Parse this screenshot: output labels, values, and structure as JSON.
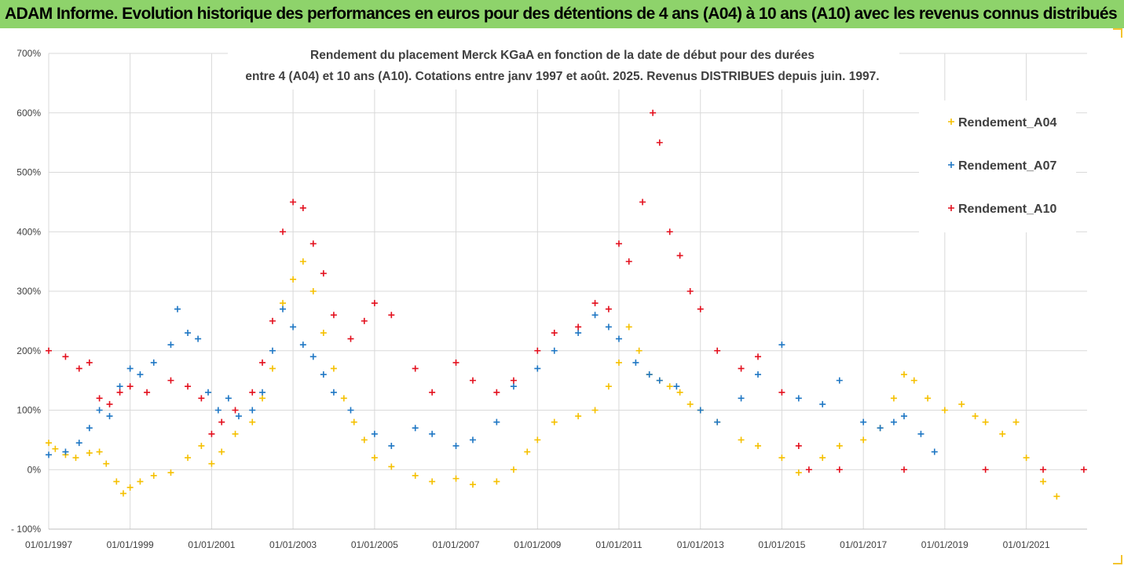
{
  "header": {
    "banner_title": "ADAM Informe. Evolution historique des performances en euros pour des détentions de 4 ans (A04) à 10 ans (A10) avec les revenus connus distribués"
  },
  "colors": {
    "banner_bg": "#8ed36b",
    "a04": "#f5c000",
    "a07": "#1f77c4",
    "a10": "#e3101e",
    "grid": "#d9d9d9",
    "axis_text": "#404040"
  },
  "chart_data": {
    "type": "scatter",
    "title_line1": "Rendement du placement Merck KGaA en fonction de la date de début pour des durées",
    "title_line2": "entre 4 (A04) et 10 ans (A10). Cotations entre janv 1997 et août. 2025. Revenus DISTRIBUES depuis juin. 1997.",
    "x_tick_labels": [
      "01/01/1997",
      "01/01/1999",
      "01/01/2001",
      "01/01/2003",
      "01/01/2005",
      "01/01/2007",
      "01/01/2009",
      "01/01/2011",
      "01/01/2013",
      "01/01/2015",
      "01/01/2017",
      "01/01/2019",
      "01/01/2021"
    ],
    "x_range": [
      "1997-01-01",
      "2022-06-30"
    ],
    "y_tick_labels": [
      "- 100%",
      "0%",
      "100%",
      "200%",
      "300%",
      "400%",
      "500%",
      "600%",
      "700%"
    ],
    "y_ticks": [
      -100,
      0,
      100,
      200,
      300,
      400,
      500,
      600,
      700
    ],
    "ylim": [
      -100,
      700
    ],
    "grid": true,
    "legend_position": "top-right",
    "marker": "+",
    "series": [
      {
        "name": "Rendement_A04",
        "color": "#f5c000",
        "points": [
          [
            "1997-01-01",
            45
          ],
          [
            "1997-03-01",
            35
          ],
          [
            "1997-06-01",
            25
          ],
          [
            "1997-09-01",
            20
          ],
          [
            "1998-01-01",
            28
          ],
          [
            "1998-04-01",
            30
          ],
          [
            "1998-06-01",
            10
          ],
          [
            "1998-09-01",
            -20
          ],
          [
            "1998-11-01",
            -40
          ],
          [
            "1999-01-01",
            -30
          ],
          [
            "1999-04-01",
            -20
          ],
          [
            "1999-08-01",
            -10
          ],
          [
            "2000-01-01",
            -5
          ],
          [
            "2000-06-01",
            20
          ],
          [
            "2000-10-01",
            40
          ],
          [
            "2001-01-01",
            10
          ],
          [
            "2001-04-01",
            30
          ],
          [
            "2001-08-01",
            60
          ],
          [
            "2002-01-01",
            80
          ],
          [
            "2002-04-01",
            120
          ],
          [
            "2002-07-01",
            170
          ],
          [
            "2002-10-01",
            280
          ],
          [
            "2003-01-01",
            320
          ],
          [
            "2003-04-01",
            350
          ],
          [
            "2003-07-01",
            300
          ],
          [
            "2003-10-01",
            230
          ],
          [
            "2004-01-01",
            170
          ],
          [
            "2004-04-01",
            120
          ],
          [
            "2004-07-01",
            80
          ],
          [
            "2004-10-01",
            50
          ],
          [
            "2005-01-01",
            20
          ],
          [
            "2005-06-01",
            5
          ],
          [
            "2006-01-01",
            -10
          ],
          [
            "2006-06-01",
            -20
          ],
          [
            "2007-01-01",
            -15
          ],
          [
            "2007-06-01",
            -25
          ],
          [
            "2008-01-01",
            -20
          ],
          [
            "2008-06-01",
            0
          ],
          [
            "2008-10-01",
            30
          ],
          [
            "2009-01-01",
            50
          ],
          [
            "2009-06-01",
            80
          ],
          [
            "2010-01-01",
            90
          ],
          [
            "2010-06-01",
            100
          ],
          [
            "2010-10-01",
            140
          ],
          [
            "2011-01-01",
            180
          ],
          [
            "2011-04-01",
            240
          ],
          [
            "2011-07-01",
            200
          ],
          [
            "2011-10-01",
            160
          ],
          [
            "2012-01-01",
            150
          ],
          [
            "2012-04-01",
            140
          ],
          [
            "2012-07-01",
            130
          ],
          [
            "2012-10-01",
            110
          ],
          [
            "2013-01-01",
            100
          ],
          [
            "2013-06-01",
            80
          ],
          [
            "2014-01-01",
            50
          ],
          [
            "2014-06-01",
            40
          ],
          [
            "2015-01-01",
            20
          ],
          [
            "2015-06-01",
            -5
          ],
          [
            "2016-01-01",
            20
          ],
          [
            "2016-06-01",
            40
          ],
          [
            "2017-01-01",
            50
          ],
          [
            "2017-06-01",
            70
          ],
          [
            "2017-10-01",
            120
          ],
          [
            "2018-01-01",
            160
          ],
          [
            "2018-04-01",
            150
          ],
          [
            "2018-08-01",
            120
          ],
          [
            "2019-01-01",
            100
          ],
          [
            "2019-06-01",
            110
          ],
          [
            "2019-10-01",
            90
          ],
          [
            "2020-01-01",
            80
          ],
          [
            "2020-06-01",
            60
          ],
          [
            "2020-10-01",
            80
          ],
          [
            "2021-01-01",
            20
          ],
          [
            "2021-06-01",
            -20
          ],
          [
            "2021-10-01",
            -45
          ]
        ]
      },
      {
        "name": "Rendement_A07",
        "color": "#1f77c4",
        "points": [
          [
            "1997-01-01",
            25
          ],
          [
            "1997-06-01",
            30
          ],
          [
            "1997-10-01",
            45
          ],
          [
            "1998-01-01",
            70
          ],
          [
            "1998-04-01",
            100
          ],
          [
            "1998-07-01",
            90
          ],
          [
            "1998-10-01",
            140
          ],
          [
            "1999-01-01",
            170
          ],
          [
            "1999-04-01",
            160
          ],
          [
            "1999-08-01",
            180
          ],
          [
            "2000-01-01",
            210
          ],
          [
            "2000-03-01",
            270
          ],
          [
            "2000-06-01",
            230
          ],
          [
            "2000-09-01",
            220
          ],
          [
            "2000-12-01",
            130
          ],
          [
            "2001-03-01",
            100
          ],
          [
            "2001-06-01",
            120
          ],
          [
            "2001-09-01",
            90
          ],
          [
            "2002-01-01",
            100
          ],
          [
            "2002-04-01",
            130
          ],
          [
            "2002-07-01",
            200
          ],
          [
            "2002-10-01",
            270
          ],
          [
            "2003-01-01",
            240
          ],
          [
            "2003-04-01",
            210
          ],
          [
            "2003-07-01",
            190
          ],
          [
            "2003-10-01",
            160
          ],
          [
            "2004-01-01",
            130
          ],
          [
            "2004-06-01",
            100
          ],
          [
            "2005-01-01",
            60
          ],
          [
            "2005-06-01",
            40
          ],
          [
            "2006-01-01",
            70
          ],
          [
            "2006-06-01",
            60
          ],
          [
            "2007-01-01",
            40
          ],
          [
            "2007-06-01",
            50
          ],
          [
            "2008-01-01",
            80
          ],
          [
            "2008-06-01",
            140
          ],
          [
            "2009-01-01",
            170
          ],
          [
            "2009-06-01",
            200
          ],
          [
            "2010-01-01",
            230
          ],
          [
            "2010-06-01",
            260
          ],
          [
            "2010-10-01",
            240
          ],
          [
            "2011-01-01",
            220
          ],
          [
            "2011-06-01",
            180
          ],
          [
            "2011-10-01",
            160
          ],
          [
            "2012-01-01",
            150
          ],
          [
            "2012-06-01",
            140
          ],
          [
            "2013-01-01",
            100
          ],
          [
            "2013-06-01",
            80
          ],
          [
            "2014-01-01",
            120
          ],
          [
            "2014-06-01",
            160
          ],
          [
            "2015-01-01",
            210
          ],
          [
            "2015-06-01",
            120
          ],
          [
            "2016-01-01",
            110
          ],
          [
            "2016-06-01",
            150
          ],
          [
            "2017-01-01",
            80
          ],
          [
            "2017-06-01",
            70
          ],
          [
            "2017-10-01",
            80
          ],
          [
            "2018-01-01",
            90
          ],
          [
            "2018-06-01",
            60
          ],
          [
            "2018-10-01",
            30
          ]
        ]
      },
      {
        "name": "Rendement_A10",
        "color": "#e3101e",
        "points": [
          [
            "1997-01-01",
            200
          ],
          [
            "1997-06-01",
            190
          ],
          [
            "1997-10-01",
            170
          ],
          [
            "1998-01-01",
            180
          ],
          [
            "1998-04-01",
            120
          ],
          [
            "1998-07-01",
            110
          ],
          [
            "1998-10-01",
            130
          ],
          [
            "1999-01-01",
            140
          ],
          [
            "1999-06-01",
            130
          ],
          [
            "2000-01-01",
            150
          ],
          [
            "2000-06-01",
            140
          ],
          [
            "2000-10-01",
            120
          ],
          [
            "2001-01-01",
            60
          ],
          [
            "2001-04-01",
            80
          ],
          [
            "2001-08-01",
            100
          ],
          [
            "2002-01-01",
            130
          ],
          [
            "2002-04-01",
            180
          ],
          [
            "2002-07-01",
            250
          ],
          [
            "2002-10-01",
            400
          ],
          [
            "2003-01-01",
            450
          ],
          [
            "2003-04-01",
            440
          ],
          [
            "2003-07-01",
            380
          ],
          [
            "2003-10-01",
            330
          ],
          [
            "2004-01-01",
            260
          ],
          [
            "2004-06-01",
            220
          ],
          [
            "2004-10-01",
            250
          ],
          [
            "2005-01-01",
            280
          ],
          [
            "2005-06-01",
            260
          ],
          [
            "2006-01-01",
            170
          ],
          [
            "2006-06-01",
            130
          ],
          [
            "2007-01-01",
            180
          ],
          [
            "2007-06-01",
            150
          ],
          [
            "2008-01-01",
            130
          ],
          [
            "2008-06-01",
            150
          ],
          [
            "2009-01-01",
            200
          ],
          [
            "2009-06-01",
            230
          ],
          [
            "2010-01-01",
            240
          ],
          [
            "2010-06-01",
            280
          ],
          [
            "2010-10-01",
            270
          ],
          [
            "2011-01-01",
            380
          ],
          [
            "2011-04-01",
            350
          ],
          [
            "2011-08-01",
            450
          ],
          [
            "2011-11-01",
            600
          ],
          [
            "2012-01-01",
            550
          ],
          [
            "2012-04-01",
            400
          ],
          [
            "2012-07-01",
            360
          ],
          [
            "2012-10-01",
            300
          ],
          [
            "2013-01-01",
            270
          ],
          [
            "2013-06-01",
            200
          ],
          [
            "2014-01-01",
            170
          ],
          [
            "2014-06-01",
            190
          ],
          [
            "2015-01-01",
            130
          ],
          [
            "2015-06-01",
            40
          ],
          [
            "2015-09-01",
            0
          ],
          [
            "2016-06-01",
            0
          ],
          [
            "2018-01-01",
            0
          ],
          [
            "2020-01-01",
            0
          ],
          [
            "2021-06-01",
            0
          ],
          [
            "2022-06-01",
            0
          ]
        ]
      }
    ]
  }
}
